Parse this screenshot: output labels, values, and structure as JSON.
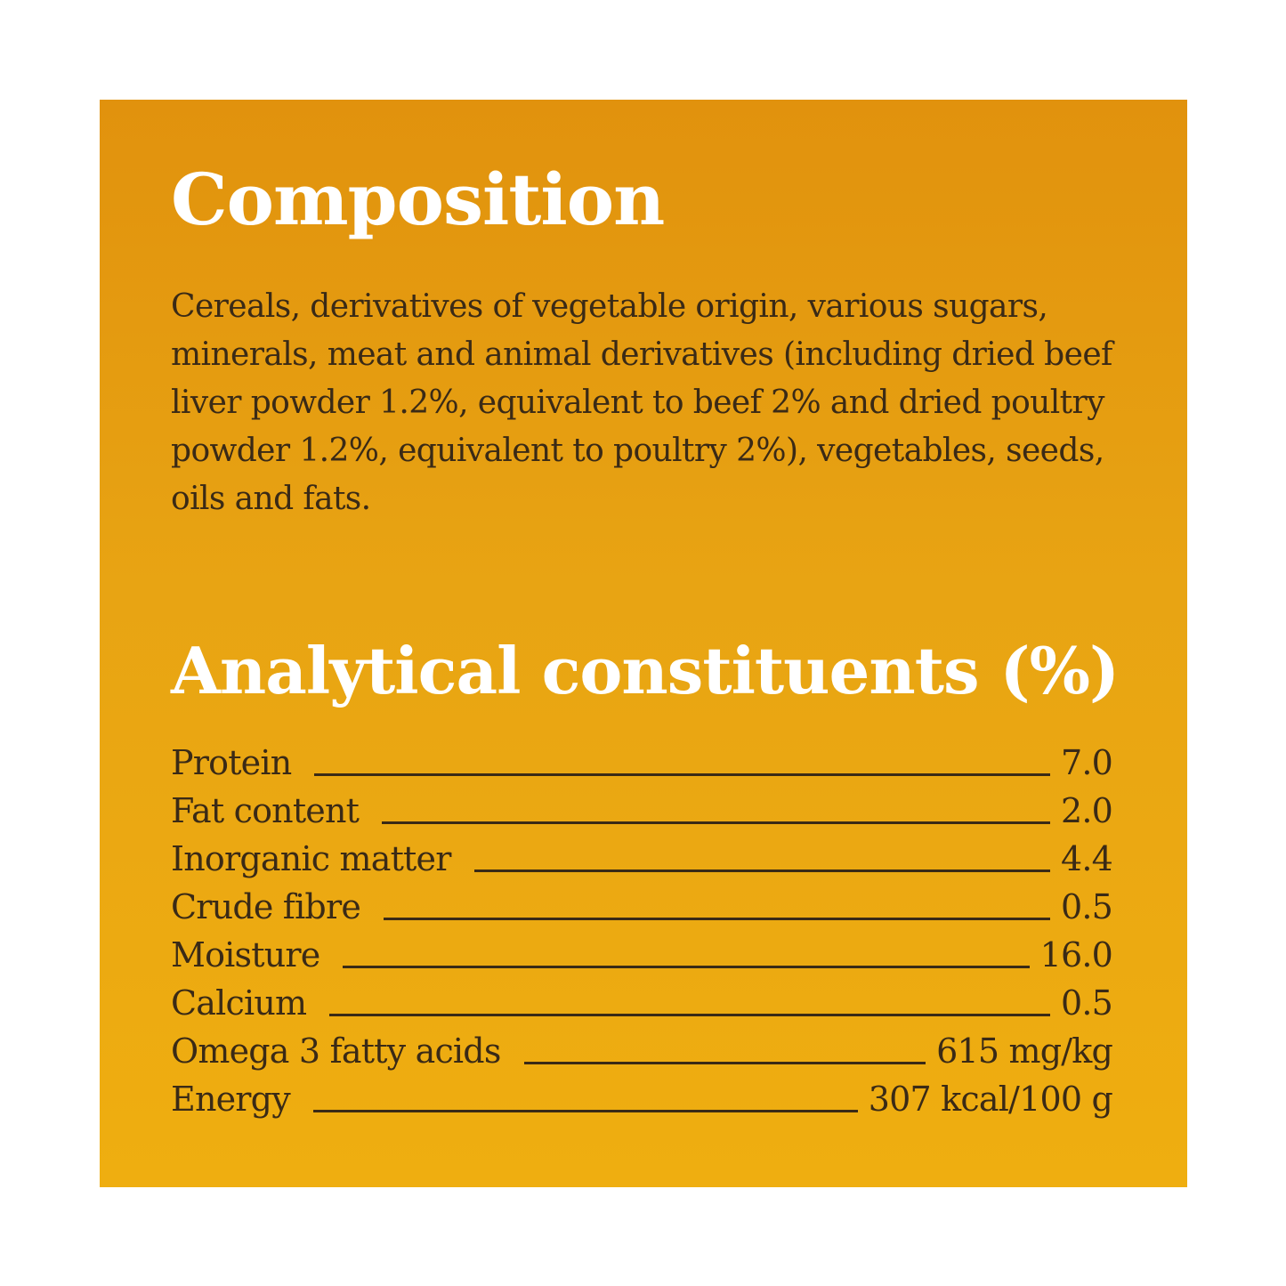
{
  "composition": {
    "title": "Composition",
    "text": "Cereals, derivatives of vegetable origin, various sugars, minerals, meat and animal derivatives (including dried beef liver powder 1.2%, equivalent to beef 2% and dried poultry powder 1.2%, equivalent to poultry 2%), vegetables, seeds, oils and fats."
  },
  "analytical": {
    "title": "Analytical constituents (%)",
    "rows": [
      {
        "label": "Protein",
        "value": "7.0"
      },
      {
        "label": "Fat content",
        "value": "2.0"
      },
      {
        "label": "Inorganic matter",
        "value": "4.4"
      },
      {
        "label": "Crude fibre",
        "value": "0.5"
      },
      {
        "label": "Moisture",
        "value": "16.0"
      },
      {
        "label": "Calcium",
        "value": "0.5"
      },
      {
        "label": "Omega 3 fatty acids",
        "value": "615 mg/kg"
      },
      {
        "label": "Energy",
        "value": "307 kcal/100 g"
      }
    ]
  },
  "colors": {
    "background_top": "#e1920d",
    "background_bottom": "#efae10",
    "heading": "#ffffff",
    "text": "#3a2a16"
  }
}
